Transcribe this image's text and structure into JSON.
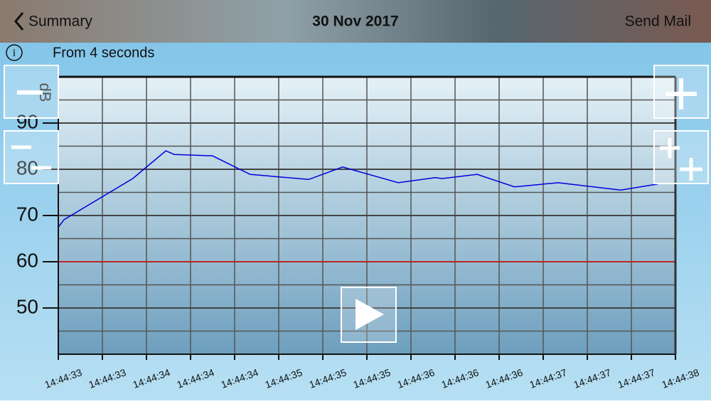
{
  "header": {
    "back": "Summary",
    "title": "30 Nov 2017",
    "action": "Send Mail"
  },
  "info": "From 4 seconds",
  "chart_data": {
    "type": "line",
    "y_label": "dB",
    "x": [
      0,
      0.13,
      1.69,
      2.44,
      2.63,
      3.5,
      4.35,
      5.68,
      6.45,
      7.71,
      8.55,
      8.71,
      9.5,
      10.35,
      11.34,
      12.76,
      13.6
    ],
    "series": [
      {
        "color": "#0000dd",
        "values": [
          67.5,
          69.1,
          78.0,
          84.0,
          83.2,
          82.9,
          78.9,
          77.8,
          80.5,
          77.1,
          78.2,
          78.0,
          78.9,
          76.2,
          77.1,
          75.5,
          76.8
        ]
      }
    ],
    "threshold": 60,
    "threshold_color": "#e0201c",
    "xlim": [
      0,
      14
    ],
    "xticks": [
      {
        "value": 0,
        "label": "14:44:33"
      },
      {
        "value": 1,
        "label": "14:44:33"
      },
      {
        "value": 2,
        "label": "14:44:34"
      },
      {
        "value": 3,
        "label": "14:44:34"
      },
      {
        "value": 4,
        "label": "14:44:34"
      },
      {
        "value": 5,
        "label": "14:44:35"
      },
      {
        "value": 6,
        "label": "14:44:35"
      },
      {
        "value": 7,
        "label": "14:44:35"
      },
      {
        "value": 8,
        "label": "14:44:36"
      },
      {
        "value": 9,
        "label": "14:44:36"
      },
      {
        "value": 10,
        "label": "14:44:36"
      },
      {
        "value": 11,
        "label": "14:44:37"
      },
      {
        "value": 12,
        "label": "14:44:37"
      },
      {
        "value": 13,
        "label": "14:44:37"
      },
      {
        "value": 14,
        "label": "14:44:38"
      }
    ],
    "ylim": [
      40,
      100
    ],
    "yticks": [
      50,
      60,
      70,
      80,
      90
    ],
    "grid": true
  }
}
